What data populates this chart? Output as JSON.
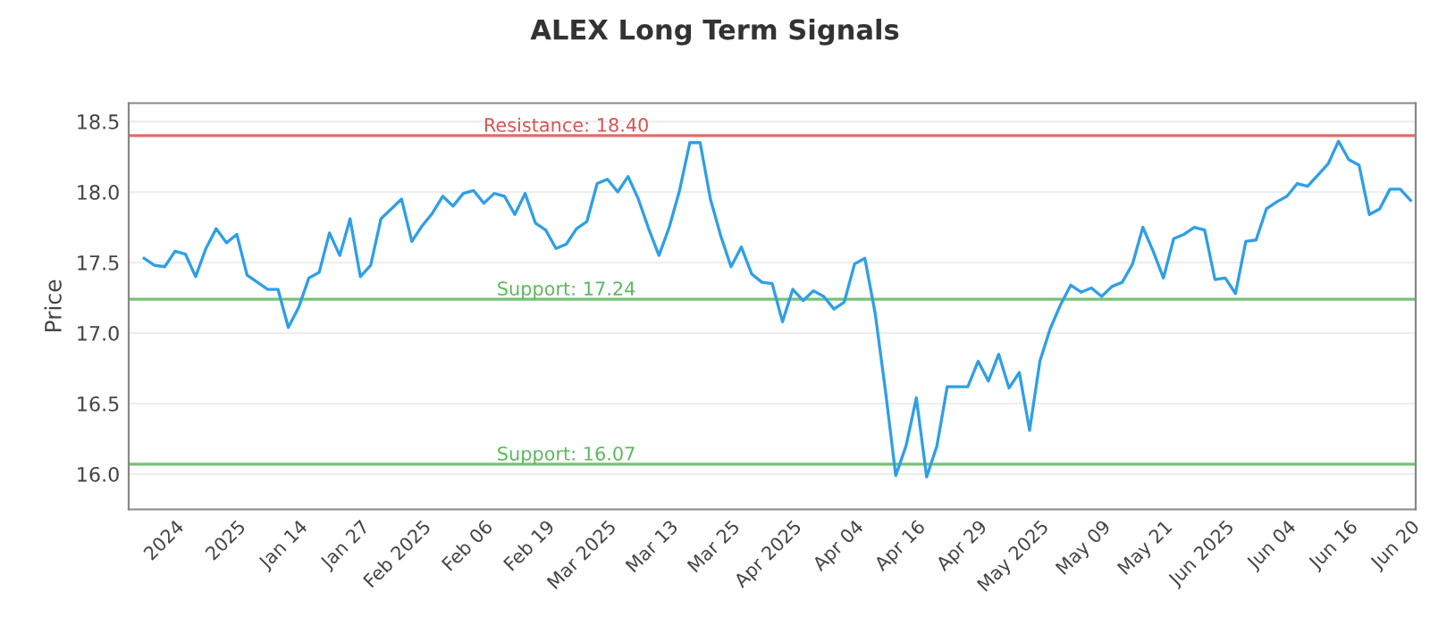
{
  "chart_data": {
    "type": "line",
    "title": "ALEX Long Term Signals",
    "ylabel": "Price",
    "categories": [
      null,
      null,
      null,
      "2024",
      null,
      null,
      null,
      null,
      null,
      "2025",
      null,
      null,
      null,
      null,
      null,
      "Jan 14",
      null,
      null,
      null,
      null,
      null,
      "Jan 27",
      null,
      null,
      null,
      null,
      null,
      "Feb 2025",
      null,
      null,
      null,
      null,
      null,
      "Feb 06",
      null,
      null,
      null,
      null,
      null,
      "Feb 19",
      null,
      null,
      null,
      null,
      null,
      "Mar 2025",
      null,
      null,
      null,
      null,
      null,
      "Mar 13",
      null,
      null,
      null,
      null,
      null,
      "Mar 25",
      null,
      null,
      null,
      null,
      null,
      "Apr 2025",
      null,
      null,
      null,
      null,
      null,
      "Apr 04",
      null,
      null,
      null,
      null,
      null,
      "Apr 16",
      null,
      null,
      null,
      null,
      null,
      "Apr 29",
      null,
      null,
      null,
      null,
      null,
      "May 2025",
      null,
      null,
      null,
      null,
      null,
      "May 09",
      null,
      null,
      null,
      null,
      null,
      "May 21",
      null,
      null,
      null,
      null,
      null,
      "Jun 2025",
      null,
      null,
      null,
      null,
      null,
      "Jun 04",
      null,
      null,
      null,
      null,
      null,
      "Jun 16",
      null,
      null,
      null,
      null,
      null,
      "Jun 20"
    ],
    "series": [
      {
        "color": "#2f9fe6",
        "values": [
          17.53,
          17.48,
          17.47,
          17.58,
          17.56,
          17.4,
          17.6,
          17.74,
          17.64,
          17.7,
          17.41,
          17.36,
          17.31,
          17.31,
          17.04,
          17.18,
          17.39,
          17.43,
          17.71,
          17.55,
          17.81,
          17.4,
          17.48,
          17.81,
          17.88,
          17.95,
          17.65,
          17.76,
          17.85,
          17.97,
          17.9,
          17.99,
          18.01,
          17.92,
          17.99,
          17.97,
          17.84,
          17.99,
          17.78,
          17.73,
          17.6,
          17.63,
          17.74,
          17.79,
          18.06,
          18.09,
          18.0,
          18.11,
          17.95,
          17.74,
          17.55,
          17.75,
          18.01,
          18.35,
          18.35,
          17.95,
          17.69,
          17.47,
          17.61,
          17.42,
          17.36,
          17.35,
          17.08,
          17.31,
          17.23,
          17.3,
          17.26,
          17.17,
          17.22,
          17.49,
          17.53,
          17.14,
          16.59,
          15.99,
          16.2,
          16.54,
          15.98,
          16.2,
          16.62,
          16.62,
          16.62,
          16.8,
          16.66,
          16.85,
          16.61,
          16.72,
          16.31,
          16.8,
          17.03,
          17.2,
          17.34,
          17.29,
          17.32,
          17.26,
          17.33,
          17.36,
          17.49,
          17.75,
          17.58,
          17.39,
          17.67,
          17.7,
          17.75,
          17.73,
          17.38,
          17.39,
          17.28,
          17.65,
          17.66,
          17.88,
          17.93,
          17.97,
          18.06,
          18.04,
          18.12,
          18.2,
          18.36,
          18.23,
          18.19,
          17.84,
          17.88,
          18.02,
          18.02,
          17.94
        ]
      }
    ],
    "ylim": [
      15.75,
      18.63
    ],
    "yticks": [
      {
        "value": 16,
        "label": "16.0"
      },
      16.5,
      {
        "value": 17,
        "label": "17.0"
      },
      17.5,
      {
        "value": 18,
        "label": "18.0"
      },
      18.5
    ],
    "grid": "y",
    "marker": "none",
    "line_style": "solid",
    "ref_lines": [
      {
        "axis": "y",
        "value": 18.4,
        "label": "Resistance: 18.40",
        "color": "#d9534f"
      },
      {
        "axis": "y",
        "value": 17.24,
        "label": "Support: 17.24",
        "color": "#5cb85c"
      },
      {
        "axis": "y",
        "value": 16.07,
        "label": "Support: 16.07",
        "color": "#5cb85c"
      }
    ]
  }
}
